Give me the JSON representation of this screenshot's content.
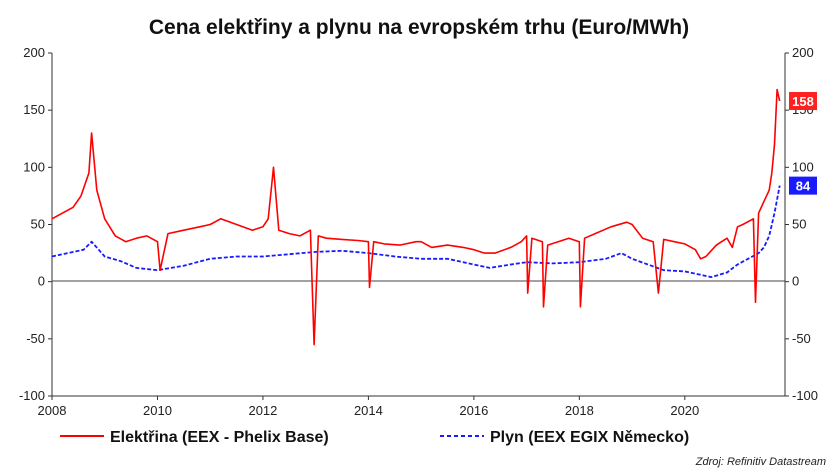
{
  "chart_data": {
    "type": "line",
    "title": "Cena elektřiny a plynu na evropském trhu (Euro/MWh)",
    "source": "Zdroj: Refinitiv Datastream",
    "xlim": [
      2008,
      2021.9
    ],
    "ylim": [
      -100,
      200
    ],
    "x_ticks": [
      2008,
      2010,
      2012,
      2014,
      2016,
      2018,
      2020
    ],
    "x_tick_labels": [
      "2008",
      "2010",
      "2012",
      "2014",
      "2016",
      "2018",
      "2020"
    ],
    "y_ticks": [
      -100,
      -50,
      0,
      50,
      100,
      150,
      200
    ],
    "y_tick_labels": [
      "-100",
      "-50",
      "0",
      "50",
      "100",
      "150",
      "200"
    ],
    "grid": false,
    "legend_position": "bottom",
    "series": [
      {
        "name": "Elektřina (EEX - Phelix Base)",
        "color": "#ff0000",
        "style": "solid",
        "last_value_label": "158",
        "x": [
          2008.0,
          2008.2,
          2008.4,
          2008.55,
          2008.7,
          2008.75,
          2008.85,
          2009.0,
          2009.2,
          2009.4,
          2009.6,
          2009.8,
          2010.0,
          2010.05,
          2010.2,
          2010.5,
          2010.8,
          2011.0,
          2011.2,
          2011.5,
          2011.8,
          2012.0,
          2012.1,
          2012.2,
          2012.3,
          2012.5,
          2012.7,
          2012.9,
          2012.97,
          2013.05,
          2013.2,
          2013.5,
          2013.8,
          2014.0,
          2014.02,
          2014.1,
          2014.3,
          2014.6,
          2014.9,
          2015.0,
          2015.2,
          2015.5,
          2015.8,
          2016.0,
          2016.2,
          2016.4,
          2016.7,
          2016.9,
          2017.0,
          2017.02,
          2017.1,
          2017.3,
          2017.32,
          2017.4,
          2017.6,
          2017.8,
          2018.0,
          2018.02,
          2018.1,
          2018.3,
          2018.6,
          2018.9,
          2019.0,
          2019.2,
          2019.4,
          2019.5,
          2019.6,
          2019.8,
          2020.0,
          2020.2,
          2020.3,
          2020.4,
          2020.6,
          2020.8,
          2020.9,
          2021.0,
          2021.1,
          2021.3,
          2021.34,
          2021.4,
          2021.5,
          2021.6,
          2021.65,
          2021.7,
          2021.75,
          2021.8
        ],
        "values": [
          55,
          60,
          65,
          75,
          95,
          130,
          80,
          55,
          40,
          35,
          38,
          40,
          35,
          10,
          42,
          45,
          48,
          50,
          55,
          50,
          45,
          48,
          55,
          100,
          45,
          42,
          40,
          45,
          -55,
          40,
          38,
          37,
          36,
          35,
          -5,
          35,
          33,
          32,
          35,
          35,
          30,
          32,
          30,
          28,
          25,
          25,
          30,
          35,
          40,
          -10,
          38,
          35,
          -22,
          32,
          35,
          38,
          35,
          -22,
          38,
          42,
          48,
          52,
          50,
          38,
          35,
          -10,
          37,
          35,
          33,
          28,
          20,
          22,
          32,
          38,
          30,
          48,
          50,
          55,
          -18,
          60,
          70,
          80,
          95,
          120,
          168,
          158
        ]
      },
      {
        "name": "Plyn (EEX EGIX Německo)",
        "color": "#1a1aff",
        "style": "dashed",
        "last_value_label": "84",
        "x": [
          2008.0,
          2008.3,
          2008.6,
          2008.75,
          2009.0,
          2009.3,
          2009.6,
          2010.0,
          2010.5,
          2011.0,
          2011.5,
          2012.0,
          2012.5,
          2013.0,
          2013.5,
          2014.0,
          2014.5,
          2015.0,
          2015.5,
          2016.0,
          2016.3,
          2016.7,
          2017.0,
          2017.5,
          2018.0,
          2018.5,
          2018.8,
          2019.0,
          2019.3,
          2019.6,
          2020.0,
          2020.3,
          2020.5,
          2020.8,
          2021.0,
          2021.2,
          2021.4,
          2021.5,
          2021.6,
          2021.7,
          2021.8
        ],
        "values": [
          22,
          25,
          28,
          35,
          22,
          18,
          12,
          10,
          14,
          20,
          22,
          22,
          24,
          26,
          27,
          25,
          22,
          20,
          20,
          15,
          12,
          15,
          17,
          16,
          17,
          20,
          25,
          20,
          15,
          10,
          9,
          6,
          4,
          8,
          15,
          20,
          25,
          30,
          40,
          60,
          84
        ]
      }
    ]
  }
}
